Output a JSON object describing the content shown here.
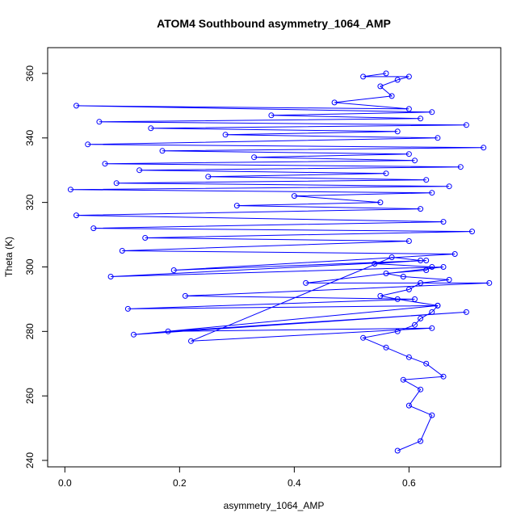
{
  "chart_data": {
    "type": "line",
    "title": "ATOM4 Southbound asymmetry_1064_AMP",
    "xlabel": "asymmetry_1064_AMP",
    "ylabel": "Theta (K)",
    "xlim": [
      -0.03,
      0.76
    ],
    "ylim": [
      238,
      368
    ],
    "x_ticks": [
      0.0,
      0.2,
      0.4,
      0.6
    ],
    "x_tick_labels": [
      "0.0",
      "0.2",
      "0.4",
      "0.6"
    ],
    "y_ticks": [
      240,
      260,
      280,
      300,
      320,
      340,
      360
    ],
    "y_tick_labels": [
      "240",
      "260",
      "280",
      "300",
      "320",
      "340",
      "360"
    ],
    "grid": false,
    "legend": "none",
    "marker": "open-circle",
    "color": "#0000ff",
    "series": [
      {
        "x": [
          0.58,
          0.62,
          0.64,
          0.6,
          0.62,
          0.59,
          0.66,
          0.63,
          0.6,
          0.56,
          0.52,
          0.58,
          0.61,
          0.62,
          0.64,
          0.65,
          0.58,
          0.55,
          0.6,
          0.62,
          0.67,
          0.59,
          0.56,
          0.63,
          0.64,
          0.54,
          0.62,
          0.57,
          0.22,
          0.64,
          0.18,
          0.7,
          0.12,
          0.65,
          0.11,
          0.61,
          0.21,
          0.74,
          0.42,
          0.66,
          0.08,
          0.63,
          0.19,
          0.68,
          0.1,
          0.6,
          0.14,
          0.71,
          0.05,
          0.66,
          0.02,
          0.62,
          0.3,
          0.55,
          0.4,
          0.64,
          0.01,
          0.67,
          0.09,
          0.63,
          0.25,
          0.56,
          0.13,
          0.69,
          0.07,
          0.61,
          0.33,
          0.6,
          0.17,
          0.73,
          0.04,
          0.65,
          0.28,
          0.58,
          0.15,
          0.7,
          0.06,
          0.62,
          0.36,
          0.64,
          0.02,
          0.6,
          0.47,
          0.57,
          0.55,
          0.58,
          0.6,
          0.52,
          0.56
        ],
        "y": [
          243,
          246,
          254,
          257,
          262,
          265,
          266,
          270,
          272,
          275,
          278,
          280,
          282,
          284,
          286,
          288,
          290,
          291,
          293,
          295,
          296,
          297,
          298,
          299,
          300,
          301,
          302,
          303,
          277,
          281,
          280,
          286,
          279,
          288,
          287,
          290,
          291,
          295,
          295,
          300,
          297,
          302,
          299,
          304,
          305,
          308,
          309,
          311,
          312,
          314,
          316,
          318,
          319,
          320,
          322,
          323,
          324,
          325,
          326,
          327,
          328,
          329,
          330,
          331,
          332,
          333,
          334,
          335,
          336,
          337,
          338,
          340,
          341,
          342,
          343,
          344,
          345,
          346,
          347,
          348,
          350,
          349,
          351,
          353,
          356,
          358,
          359,
          359,
          360
        ]
      }
    ]
  }
}
